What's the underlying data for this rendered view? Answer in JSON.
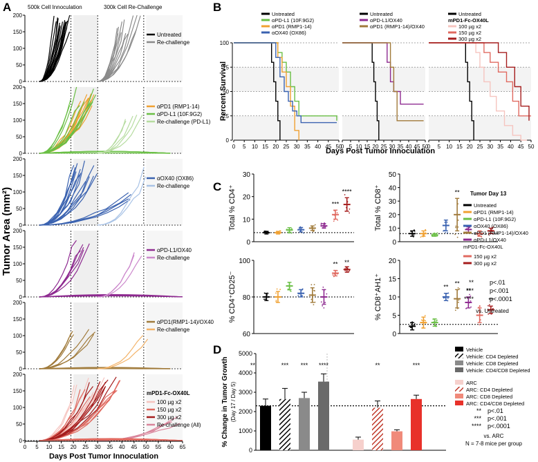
{
  "figure": {
    "panel_labels": [
      "A",
      "B",
      "C",
      "D"
    ],
    "colors": {
      "black": "#000000",
      "gray": "#8a8a8a",
      "orange": "#f0a030",
      "green": "#6abf45",
      "lightgreen": "#b6dca0",
      "blue": "#3a62b0",
      "lightblue": "#a9c3e6",
      "purple": "#8e2a90",
      "lightpurple": "#cc88cc",
      "brown": "#a07a3a",
      "lightorange": "#f3b267",
      "pink1": "#f6c4bf",
      "red2": "#e06a60",
      "darkred": "#a51c1c",
      "pinkall": "#d9849b",
      "red": "#e8312a",
      "salmon": "#f08a7a",
      "ltpink": "#f6d0cc",
      "shade": "#efefef"
    }
  },
  "panelA": {
    "top_labels": [
      "500k Cell Innoculation",
      "300k Cell Re-Challenge"
    ],
    "ylabel": "Tumor Area (mm²)",
    "xlabel": "Days Post Tumor Innoculation",
    "xticks": [
      "0",
      "5",
      "10",
      "15",
      "20",
      "25",
      "30",
      "35",
      "40",
      "45",
      "50",
      "55",
      "60",
      "65"
    ],
    "yticks": [
      "0",
      "50",
      "100",
      "150",
      "200"
    ],
    "subpanels": [
      {
        "title": "",
        "legend": [
          {
            "label": "Untreated",
            "color": "#000000"
          },
          {
            "label": "Re-challenge",
            "color": "#8a8a8a"
          }
        ]
      },
      {
        "title": "",
        "legend": [
          {
            "label": "αPD1 (RMP1-14)",
            "color": "#f0a030"
          },
          {
            "label": "αPD-L1 (10F.9G2)",
            "color": "#6abf45"
          },
          {
            "label": "Re-challenge (PD-L1)",
            "color": "#b6dca0"
          }
        ]
      },
      {
        "title": "",
        "legend": [
          {
            "label": "αOX40 (OX86)",
            "color": "#3a62b0"
          },
          {
            "label": "Re-challenge",
            "color": "#a9c3e6"
          }
        ]
      },
      {
        "title": "",
        "legend": [
          {
            "label": "αPD-L1/OX40",
            "color": "#8e2a90"
          },
          {
            "label": "Re-challenge",
            "color": "#cc88cc"
          }
        ]
      },
      {
        "title": "",
        "legend": [
          {
            "label": "αPD1(RMP1-14)/OX40",
            "color": "#a07a3a"
          },
          {
            "label": "Re-challenge",
            "color": "#f3b267"
          }
        ]
      },
      {
        "title": "mPD1-Fc-OX40L",
        "legend": [
          {
            "label": "100 µg x2",
            "color": "#f6c4bf"
          },
          {
            "label": "150 µg x2",
            "color": "#e06a60"
          },
          {
            "label": "300 µg x2",
            "color": "#a51c1c"
          },
          {
            "label": "Re-challenge (All)",
            "color": "#d9849b"
          }
        ]
      }
    ]
  },
  "panelB": {
    "ylabel": "Percent Survival",
    "xlabel": "Days Post Tumor Innoculation",
    "yticks": [
      "0",
      "25",
      "50",
      "75",
      "100"
    ],
    "xticks": [
      "0",
      "5",
      "10",
      "15",
      "20",
      "25",
      "30",
      "35",
      "40",
      "45",
      "50"
    ],
    "legends": [
      [
        {
          "label": "Untreated",
          "color": "#000000"
        },
        {
          "label": "αPD-L1 (10F.9G2)",
          "color": "#6abf45"
        },
        {
          "label": "αPD1 (RMP1-14)",
          "color": "#f0a030"
        },
        {
          "label": "αOX40 (OX86)",
          "color": "#3a62b0"
        }
      ],
      [
        {
          "label": "Untreated",
          "color": "#000000"
        },
        {
          "label": "αPD-L1/OX40",
          "color": "#8e2a90"
        },
        {
          "label": "αPD1 (RMP1-14)/OX40",
          "color": "#a07a3a"
        }
      ],
      [
        {
          "label": "Untreated",
          "color": "#000000"
        },
        {
          "label": "100 µg x2",
          "color": "#f6c4bf"
        },
        {
          "label": "150 µg x2",
          "color": "#e06a60"
        },
        {
          "label": "300 µg x2",
          "color": "#a51c1c"
        }
      ]
    ],
    "legend3_title": "mPD1-Fc-OX40L"
  },
  "panelC": {
    "subplots": [
      {
        "ylabel": "Total % CD4⁺",
        "yticks": [
          "0",
          "10",
          "20",
          "30"
        ],
        "sig": [
          "***",
          "****"
        ]
      },
      {
        "ylabel": "Total % CD8⁺",
        "yticks": [
          "0",
          "10",
          "20",
          "30",
          "40",
          "50"
        ],
        "sig": [
          "**"
        ]
      },
      {
        "ylabel": "% CD4⁺CD25⁻",
        "yticks": [
          "60",
          "80",
          "100"
        ],
        "sig": [
          "**",
          "**"
        ]
      },
      {
        "ylabel": "% CD8⁺AH1⁺",
        "yticks": [
          "0",
          "5",
          "10",
          "15",
          "20"
        ],
        "sig": [
          "**",
          "**",
          "**",
          "**"
        ]
      }
    ],
    "legend_title": "Tumor Day 13",
    "legend": [
      {
        "label": "Untreated",
        "color": "#000000"
      },
      {
        "label": "αPD1 (RMP1-14)",
        "color": "#f0a030"
      },
      {
        "label": "αPD-L1 (10F.9G2)",
        "color": "#6abf45"
      },
      {
        "label": "αOX40 (OX86)",
        "color": "#3a62b0"
      },
      {
        "label": "αPD1 (RMP1-14)/OX40",
        "color": "#a07a3a"
      },
      {
        "label": "αPD-L1/OX40",
        "color": "#8e2a90"
      }
    ],
    "legend_sub": "mPD1-Fc-OX40L",
    "legend2": [
      {
        "label": "150 µg x2",
        "color": "#e06a60"
      },
      {
        "label": "300 µg x2",
        "color": "#a51c1c"
      }
    ],
    "pvalues": [
      {
        "stars": "**",
        "text": "p<.01"
      },
      {
        "stars": "***",
        "text": "p<.001"
      },
      {
        "stars": "****",
        "text": "p<.0001"
      }
    ],
    "vs": "vs. Untreated"
  },
  "panelD": {
    "ylabel": "% Change in Tumor Growth",
    "ylabel2": "(Day 17 / Day 5)",
    "yticks": [
      "0",
      "1000",
      "2000",
      "3000",
      "4000",
      "5000"
    ],
    "legend": [
      {
        "label": "Vehicle",
        "color": "#000000",
        "hatch": false
      },
      {
        "label": "Vehicle: CD4 Depleted",
        "color": "#000000",
        "hatch": true
      },
      {
        "label": "Vehicle: CD8 Depleted",
        "color": "#8a8a8a",
        "hatch": false
      },
      {
        "label": "Vehicle: CD4/CD8 Depleted",
        "color": "#6a6a6a",
        "hatch": false
      },
      {
        "label": "ARC",
        "color": "#f6d0cc",
        "hatch": false
      },
      {
        "label": "ARC: CD4 Depleted",
        "color": "#c0392b",
        "hatch": true
      },
      {
        "label": "ARC: CD8 Depleted",
        "color": "#f08a7a",
        "hatch": false
      },
      {
        "label": "ARC: CD4/CD8 Depleted",
        "color": "#e8312a",
        "hatch": false
      }
    ],
    "pvalues": [
      {
        "stars": "**",
        "text": "p<.01"
      },
      {
        "stars": "***",
        "text": "p<.001"
      },
      {
        "stars": "****",
        "text": "p<.0001"
      }
    ],
    "vs": "vs. ARC",
    "n": "N = 7-8 mice per group"
  },
  "chart_data": [
    {
      "type": "bar",
      "panel": "D",
      "ylabel": "% Change in Tumor Growth (Day 17 / Day 5)",
      "ylim": [
        0,
        5000
      ],
      "categories": [
        "Vehicle",
        "Vehicle: CD4 Depleted",
        "Vehicle: CD8 Depleted",
        "Vehicle: CD4/CD8 Depleted",
        "ARC",
        "ARC: CD4 Depleted",
        "ARC: CD8 Depleted",
        "ARC: CD4/CD8 Depleted"
      ],
      "values": [
        2300,
        2650,
        2700,
        3550,
        550,
        2200,
        980,
        2650
      ],
      "errors": [
        350,
        550,
        300,
        400,
        130,
        350,
        80,
        200
      ],
      "significance": [
        "**",
        "***",
        "***",
        "****",
        "",
        "**",
        "",
        "***"
      ],
      "reference_line": 2300
    },
    {
      "type": "line",
      "panel": "B",
      "ylabel": "Percent Survival",
      "xlabel": "Days Post Tumor Innoculation",
      "xlim": [
        0,
        50
      ],
      "ylim": [
        0,
        100
      ],
      "plots": [
        {
          "series": [
            {
              "name": "Untreated",
              "color": "#000000",
              "x": [
                0,
                17,
                18,
                19,
                20,
                21,
                22
              ],
              "y": [
                100,
                100,
                80,
                60,
                40,
                20,
                0
              ]
            },
            {
              "name": "αPD-L1 (10F.9G2)",
              "color": "#6abf45",
              "x": [
                0,
                19,
                21,
                23,
                25,
                27,
                29,
                31,
                49
              ],
              "y": [
                100,
                100,
                90,
                80,
                70,
                55,
                40,
                25,
                20
              ]
            },
            {
              "name": "αPD1 (RMP1-14)",
              "color": "#f0a030",
              "x": [
                0,
                19,
                21,
                23,
                25,
                27,
                29,
                31
              ],
              "y": [
                100,
                100,
                85,
                70,
                55,
                35,
                10,
                0
              ]
            },
            {
              "name": "αOX40 (OX86)",
              "color": "#3a62b0",
              "x": [
                0,
                18,
                20,
                22,
                24,
                26,
                28,
                30,
                32,
                49
              ],
              "y": [
                100,
                100,
                85,
                65,
                50,
                40,
                30,
                25,
                18,
                18
              ]
            }
          ]
        },
        {
          "series": [
            {
              "name": "Untreated",
              "color": "#000000",
              "x": [
                0,
                17,
                18,
                19,
                20,
                21,
                22
              ],
              "y": [
                100,
                100,
                80,
                60,
                40,
                20,
                0
              ]
            },
            {
              "name": "αPD-L1/OX40",
              "color": "#8e2a90",
              "x": [
                0,
                25,
                27,
                29,
                31,
                35,
                49
              ],
              "y": [
                100,
                100,
                80,
                60,
                50,
                37,
                37
              ]
            },
            {
              "name": "αPD1 (RMP1-14)/OX40",
              "color": "#a07a3a",
              "x": [
                0,
                27,
                29,
                31,
                33,
                49
              ],
              "y": [
                100,
                100,
                75,
                50,
                20,
                20
              ]
            }
          ]
        },
        {
          "series": [
            {
              "name": "Untreated",
              "color": "#000000",
              "x": [
                0,
                17,
                18,
                19,
                20,
                21,
                22
              ],
              "y": [
                100,
                100,
                80,
                60,
                40,
                20,
                0
              ]
            },
            {
              "name": "100 µg x2",
              "color": "#f6c4bf",
              "x": [
                0,
                21,
                23,
                25,
                27,
                30,
                33,
                37,
                41,
                45,
                48
              ],
              "y": [
                100,
                100,
                90,
                75,
                60,
                45,
                30,
                15,
                5,
                0,
                0
              ]
            },
            {
              "name": "150 µg x2",
              "color": "#e06a60",
              "x": [
                0,
                24,
                27,
                30,
                34,
                38,
                41,
                44,
                50
              ],
              "y": [
                100,
                100,
                90,
                80,
                70,
                60,
                40,
                25,
                25
              ]
            },
            {
              "name": "300 µg x2",
              "color": "#a51c1c",
              "x": [
                0,
                30,
                34,
                38,
                42,
                45,
                49
              ],
              "y": [
                100,
                100,
                90,
                75,
                55,
                35,
                20
              ]
            }
          ]
        }
      ]
    }
  ]
}
